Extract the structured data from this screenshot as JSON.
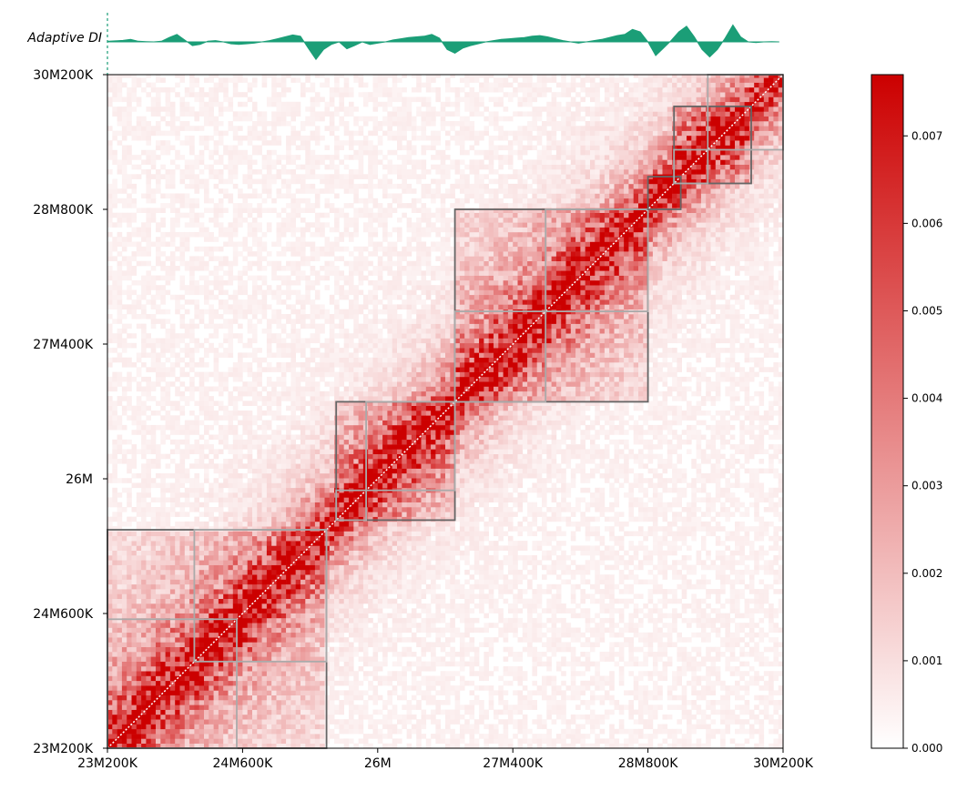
{
  "chart_data": [
    {
      "type": "area",
      "title": "",
      "track_label": "Adaptive DI",
      "color": "#1b9e77",
      "x_range": [
        23200000,
        30200000
      ],
      "x": [
        23200000,
        23280000,
        23360000,
        23440000,
        23520000,
        23600000,
        23680000,
        23760000,
        23840000,
        23920000,
        24000000,
        24080000,
        24160000,
        24240000,
        24320000,
        24400000,
        24480000,
        24560000,
        24640000,
        24720000,
        24800000,
        24880000,
        24960000,
        25040000,
        25120000,
        25200000,
        25280000,
        25360000,
        25440000,
        25520000,
        25600000,
        25680000,
        25760000,
        25840000,
        25920000,
        26000000,
        26080000,
        26160000,
        26240000,
        26320000,
        26400000,
        26480000,
        26560000,
        26640000,
        26720000,
        26800000,
        26880000,
        26960000,
        27040000,
        27120000,
        27200000,
        27280000,
        27360000,
        27440000,
        27520000,
        27600000,
        27680000,
        27760000,
        27840000,
        27920000,
        28000000,
        28080000,
        28160000,
        28240000,
        28320000,
        28400000,
        28480000,
        28560000,
        28640000,
        28720000,
        28800000,
        28880000,
        28960000,
        29040000,
        29120000,
        29200000,
        29280000,
        29360000,
        29440000,
        29520000,
        29600000,
        29680000,
        29760000,
        29840000,
        29920000,
        30000000,
        30080000,
        30160000
      ],
      "values": [
        0.05,
        0.08,
        0.12,
        0.2,
        0.05,
        0.02,
        0.0,
        0.05,
        0.35,
        0.6,
        0.15,
        -0.3,
        -0.2,
        0.05,
        0.1,
        0.0,
        -0.15,
        -0.2,
        -0.15,
        -0.1,
        0.0,
        0.1,
        0.25,
        0.4,
        0.55,
        0.45,
        -0.5,
        -1.4,
        -0.6,
        -0.2,
        0.0,
        -0.55,
        -0.3,
        0.0,
        -0.2,
        -0.1,
        0.0,
        0.15,
        0.25,
        0.35,
        0.4,
        0.45,
        0.6,
        0.3,
        -0.6,
        -0.9,
        -0.5,
        -0.3,
        -0.15,
        0.0,
        0.1,
        0.2,
        0.25,
        0.3,
        0.35,
        0.45,
        0.5,
        0.4,
        0.25,
        0.1,
        0.0,
        -0.1,
        0.0,
        0.1,
        0.2,
        0.35,
        0.5,
        0.6,
        1.0,
        0.8,
        0.0,
        -1.1,
        -0.5,
        0.1,
        0.8,
        1.25,
        0.4,
        -0.6,
        -1.2,
        -0.6,
        0.3,
        1.35,
        0.4,
        0.0,
        -0.05,
        0.0,
        0.02,
        0.0
      ],
      "ylim": [
        -1.6,
        1.6
      ]
    },
    {
      "type": "heatmap",
      "title": "",
      "xlabel": "",
      "ylabel": "",
      "color_scale": [
        "#ffffff",
        "#cc0000"
      ],
      "vmin": 0,
      "vmax": 0.0077,
      "colorbar_ticks": [
        "0.000",
        "0.001",
        "0.002",
        "0.003",
        "0.004",
        "0.005",
        "0.006",
        "0.007"
      ],
      "colorbar_tick_values": [
        0,
        0.001,
        0.002,
        0.003,
        0.004,
        0.005,
        0.006,
        0.007
      ],
      "x_range": [
        23200000,
        30200000
      ],
      "y_range": [
        23200000,
        30200000
      ],
      "x_ticks": [
        {
          "value": 23200000,
          "label": "23M200K"
        },
        {
          "value": 24600000,
          "label": "24M600K"
        },
        {
          "value": 26000000,
          "label": "26M"
        },
        {
          "value": 27400000,
          "label": "27M400K"
        },
        {
          "value": 28800000,
          "label": "28M800K"
        },
        {
          "value": 30200000,
          "label": "30M200K"
        }
      ],
      "y_ticks": [
        {
          "value": 23200000,
          "label": "23M200K"
        },
        {
          "value": 24600000,
          "label": "24M600K"
        },
        {
          "value": 26000000,
          "label": "26M"
        },
        {
          "value": 27400000,
          "label": "27M400K"
        },
        {
          "value": 28800000,
          "label": "28M800K"
        },
        {
          "value": 30200000,
          "label": "30M200K"
        }
      ],
      "domains": [
        {
          "start": 23200000,
          "end": 25470000,
          "level": 1
        },
        {
          "start": 23200000,
          "end": 24540000,
          "level": 2
        },
        {
          "start": 24100000,
          "end": 25470000,
          "level": 2
        },
        {
          "start": 25570000,
          "end": 26800000,
          "level": 1
        },
        {
          "start": 25570000,
          "end": 25880000,
          "level": 2
        },
        {
          "start": 25880000,
          "end": 26800000,
          "level": 2
        },
        {
          "start": 26800000,
          "end": 28800000,
          "level": 1
        },
        {
          "start": 26800000,
          "end": 27740000,
          "level": 2
        },
        {
          "start": 27740000,
          "end": 28800000,
          "level": 2
        },
        {
          "start": 28800000,
          "end": 29140000,
          "level": 1
        },
        {
          "start": 29070000,
          "end": 29870000,
          "level": 1
        },
        {
          "start": 29070000,
          "end": 29420000,
          "level": 2
        },
        {
          "start": 29420000,
          "end": 30200000,
          "level": 2
        }
      ],
      "domain_colors": {
        "1": "#666666",
        "2": "#aaaaaa"
      }
    }
  ]
}
